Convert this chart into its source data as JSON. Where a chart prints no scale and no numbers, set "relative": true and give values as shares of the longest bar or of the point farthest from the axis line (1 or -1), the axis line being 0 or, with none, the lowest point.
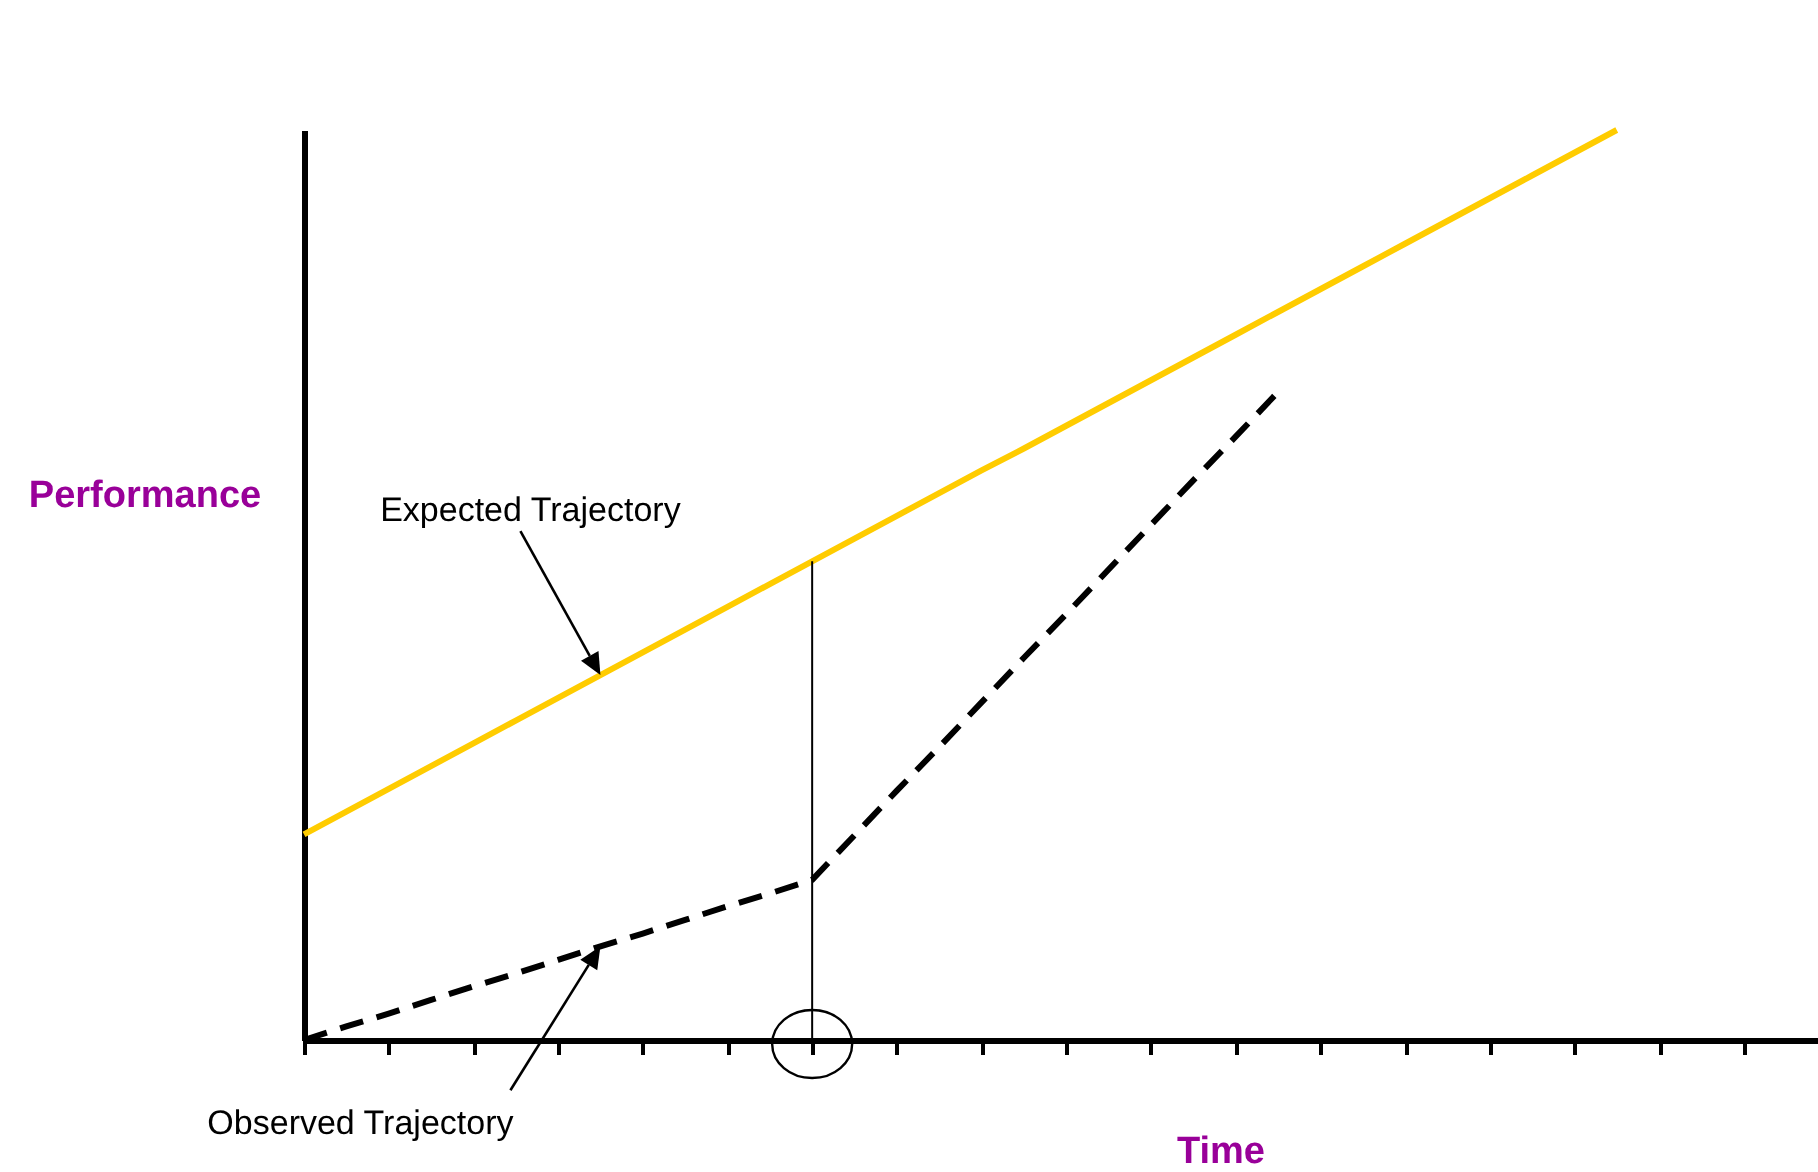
{
  "chart_data": {
    "type": "line",
    "relative": true,
    "xlabel": "Time",
    "ylabel": "Performance",
    "categories": [
      null,
      null,
      null,
      null,
      null,
      null,
      null,
      null,
      null,
      null,
      null,
      null,
      null,
      null,
      null,
      null,
      null,
      null,
      null,
      null,
      null,
      null,
      null,
      null,
      null,
      null,
      null,
      null,
      null,
      null,
      null,
      null,
      null,
      null,
      null,
      null
    ],
    "series": [
      {
        "color": "#ffcc00",
        "line_style": "solid",
        "values": [
          0.226,
          0.251,
          0.276,
          0.301,
          0.326,
          0.351,
          0.376,
          0.401,
          0.426,
          0.451,
          0.476,
          0.501,
          0.526,
          0.551,
          0.576,
          0.601,
          0.626,
          0.65,
          0.675,
          0.7,
          0.725,
          0.75,
          0.775,
          0.8,
          0.825,
          0.85,
          0.875,
          0.9,
          0.925,
          0.95,
          0.975,
          1,
          null,
          null,
          null,
          null
        ]
      },
      {
        "color": "#000000",
        "line_style": "dashed",
        "values": [
          0,
          0.015,
          0.029,
          0.044,
          0.059,
          0.073,
          0.088,
          0.103,
          0.117,
          0.132,
          0.147,
          0.161,
          0.176,
          0.225,
          0.274,
          0.322,
          0.371,
          0.42,
          0.468,
          0.517,
          0.566,
          0.615,
          0.663,
          0.712,
          null,
          null,
          null,
          null,
          null,
          null,
          null,
          null,
          null,
          null,
          null,
          null
        ]
      }
    ],
    "annotations": [
      "Expected Trajectory",
      "Observed Trajectory"
    ]
  }
}
